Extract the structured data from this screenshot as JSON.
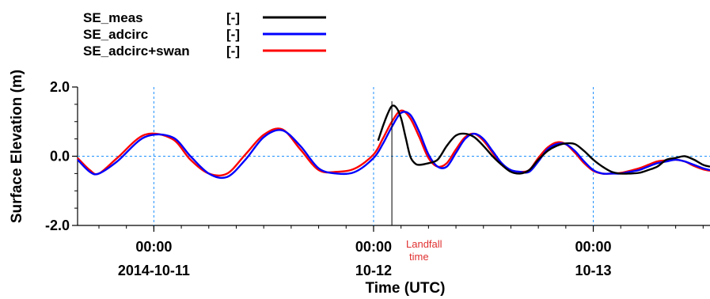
{
  "chart_data": {
    "type": "line",
    "xlabel": "Time (UTC)",
    "ylabel": "Surface Elevation (m)",
    "ylim": [
      -2.0,
      2.0
    ],
    "xlim": [
      "2014-10-10T15:40",
      "2014-10-13T12:45"
    ],
    "yticks": [
      {
        "value": 2.0,
        "label": "2.0"
      },
      {
        "value": 0.0,
        "label": "0.0"
      },
      {
        "value": -2.0,
        "label": "-2.0"
      }
    ],
    "xticks": [
      {
        "value": "2014-10-11T00:00",
        "time": "00:00",
        "date": "2014-10-11"
      },
      {
        "value": "2014-10-12T00:00",
        "time": "00:00",
        "date": "10-12"
      },
      {
        "value": "2014-10-13T00:00",
        "time": "00:00",
        "date": "10-13"
      }
    ],
    "grid": "dashed blue at major ticks",
    "legend_position": "top-left, above plot",
    "annotation": {
      "line1": "Landfall",
      "line2": "time",
      "x": "2014-10-12T02:00"
    },
    "series": [
      {
        "name": "SE_meas",
        "unit": "[-]",
        "color": "#000000",
        "x": [
          "2014-10-12T00:30",
          "2014-10-12T01:00",
          "2014-10-12T01:30",
          "2014-10-12T02:00",
          "2014-10-12T02:30",
          "2014-10-12T03:00",
          "2014-10-12T03:30",
          "2014-10-12T04:00",
          "2014-10-12T04:30",
          "2014-10-12T05:00",
          "2014-10-12T06:00",
          "2014-10-12T07:00",
          "2014-10-12T08:00",
          "2014-10-12T09:00",
          "2014-10-12T10:00",
          "2014-10-12T11:00",
          "2014-10-12T12:00",
          "2014-10-12T13:00",
          "2014-10-12T14:00",
          "2014-10-12T15:00",
          "2014-10-12T16:00",
          "2014-10-12T17:00",
          "2014-10-12T18:00",
          "2014-10-12T19:00",
          "2014-10-12T20:00",
          "2014-10-12T21:00",
          "2014-10-12T22:00",
          "2014-10-12T23:00",
          "2014-10-13T00:00",
          "2014-10-13T01:00",
          "2014-10-13T02:00",
          "2014-10-13T03:00",
          "2014-10-13T04:00",
          "2014-10-13T05:00",
          "2014-10-13T06:00",
          "2014-10-13T07:00",
          "2014-10-13T08:00",
          "2014-10-13T09:00",
          "2014-10-13T10:00",
          "2014-10-13T11:00",
          "2014-10-13T12:00",
          "2014-10-13T12:45"
        ],
        "values": [
          0.45,
          0.85,
          1.2,
          1.45,
          1.4,
          1.1,
          0.55,
          0.0,
          -0.2,
          -0.25,
          -0.2,
          -0.1,
          0.3,
          0.6,
          0.65,
          0.55,
          0.3,
          0.0,
          -0.25,
          -0.45,
          -0.5,
          -0.4,
          -0.1,
          0.15,
          0.3,
          0.37,
          0.35,
          0.15,
          -0.1,
          -0.3,
          -0.45,
          -0.5,
          -0.5,
          -0.48,
          -0.4,
          -0.3,
          -0.1,
          -0.05,
          0.0,
          -0.1,
          -0.25,
          -0.3
        ]
      },
      {
        "name": "SE_adcirc",
        "unit": "[-]",
        "color": "#0000ff",
        "x": [
          "2014-10-10T15:40",
          "2014-10-10T17:00",
          "2014-10-10T18:00",
          "2014-10-10T20:00",
          "2014-10-10T23:00",
          "2014-10-11T02:00",
          "2014-10-11T04:00",
          "2014-10-11T06:00",
          "2014-10-11T08:00",
          "2014-10-11T10:00",
          "2014-10-11T12:00",
          "2014-10-11T14:00",
          "2014-10-11T16:00",
          "2014-10-11T18:00",
          "2014-10-11T20:00",
          "2014-10-11T22:00",
          "2014-10-12T00:00",
          "2014-10-12T01:00",
          "2014-10-12T02:00",
          "2014-10-12T03:00",
          "2014-10-12T04:00",
          "2014-10-12T05:00",
          "2014-10-12T06:00",
          "2014-10-12T07:00",
          "2014-10-12T08:00",
          "2014-10-12T09:00",
          "2014-10-12T10:00",
          "2014-10-12T11:00",
          "2014-10-12T12:00",
          "2014-10-12T13:00",
          "2014-10-12T14:00",
          "2014-10-12T15:00",
          "2014-10-12T16:00",
          "2014-10-12T17:00",
          "2014-10-12T18:00",
          "2014-10-12T19:00",
          "2014-10-12T20:00",
          "2014-10-12T21:00",
          "2014-10-12T22:00",
          "2014-10-12T23:00",
          "2014-10-13T00:00",
          "2014-10-13T01:00",
          "2014-10-13T02:00",
          "2014-10-13T03:00",
          "2014-10-13T04:00",
          "2014-10-13T05:00",
          "2014-10-13T06:00",
          "2014-10-13T07:00",
          "2014-10-13T08:00",
          "2014-10-13T09:00",
          "2014-10-13T10:00",
          "2014-10-13T11:00",
          "2014-10-13T12:00",
          "2014-10-13T12:45"
        ],
        "values": [
          -0.1,
          -0.45,
          -0.5,
          -0.15,
          0.55,
          0.55,
          0.0,
          -0.5,
          -0.6,
          -0.1,
          0.55,
          0.75,
          0.3,
          -0.35,
          -0.5,
          -0.45,
          -0.05,
          0.35,
          0.85,
          1.25,
          1.2,
          0.7,
          0.05,
          -0.3,
          -0.3,
          0.1,
          0.5,
          0.65,
          0.5,
          0.15,
          -0.2,
          -0.4,
          -0.45,
          -0.45,
          -0.15,
          0.2,
          0.35,
          0.35,
          0.15,
          -0.15,
          -0.4,
          -0.5,
          -0.5,
          -0.5,
          -0.45,
          -0.4,
          -0.3,
          -0.2,
          -0.15,
          -0.1,
          -0.15,
          -0.25,
          -0.35,
          -0.4
        ]
      },
      {
        "name": "SE_adcirc+swan",
        "unit": "[-]",
        "color": "#ff0000",
        "x": [
          "2014-10-10T15:40",
          "2014-10-10T17:00",
          "2014-10-10T18:00",
          "2014-10-10T20:00",
          "2014-10-10T23:00",
          "2014-10-11T02:00",
          "2014-10-11T04:00",
          "2014-10-11T06:00",
          "2014-10-11T08:00",
          "2014-10-11T10:00",
          "2014-10-11T12:00",
          "2014-10-11T14:00",
          "2014-10-11T16:00",
          "2014-10-11T18:00",
          "2014-10-11T20:00",
          "2014-10-11T22:00",
          "2014-10-12T00:00",
          "2014-10-12T01:00",
          "2014-10-12T02:00",
          "2014-10-12T03:00",
          "2014-10-12T04:00",
          "2014-10-12T05:00",
          "2014-10-12T06:00",
          "2014-10-12T07:00",
          "2014-10-12T08:00",
          "2014-10-12T09:00",
          "2014-10-12T10:00",
          "2014-10-12T11:00",
          "2014-10-12T12:00",
          "2014-10-12T13:00",
          "2014-10-12T14:00",
          "2014-10-12T15:00",
          "2014-10-12T16:00",
          "2014-10-12T17:00",
          "2014-10-12T18:00",
          "2014-10-12T19:00",
          "2014-10-12T20:00",
          "2014-10-12T21:00",
          "2014-10-12T22:00",
          "2014-10-12T23:00",
          "2014-10-13T00:00",
          "2014-10-13T01:00",
          "2014-10-13T02:00",
          "2014-10-13T03:00",
          "2014-10-13T04:00",
          "2014-10-13T05:00",
          "2014-10-13T06:00",
          "2014-10-13T07:00",
          "2014-10-13T08:00",
          "2014-10-13T09:00",
          "2014-10-13T10:00",
          "2014-10-13T11:00",
          "2014-10-13T12:00",
          "2014-10-13T12:45"
        ],
        "values": [
          -0.05,
          -0.4,
          -0.5,
          -0.05,
          0.62,
          0.5,
          -0.1,
          -0.5,
          -0.5,
          0.05,
          0.62,
          0.78,
          0.2,
          -0.4,
          -0.45,
          -0.35,
          0.05,
          0.5,
          1.0,
          1.32,
          1.1,
          0.55,
          -0.05,
          -0.3,
          -0.2,
          0.2,
          0.55,
          0.65,
          0.45,
          0.1,
          -0.25,
          -0.42,
          -0.45,
          -0.4,
          -0.05,
          0.25,
          0.4,
          0.35,
          0.1,
          -0.2,
          -0.42,
          -0.5,
          -0.5,
          -0.48,
          -0.42,
          -0.35,
          -0.25,
          -0.15,
          -0.12,
          -0.1,
          -0.15,
          -0.28,
          -0.38,
          -0.42
        ]
      }
    ]
  }
}
